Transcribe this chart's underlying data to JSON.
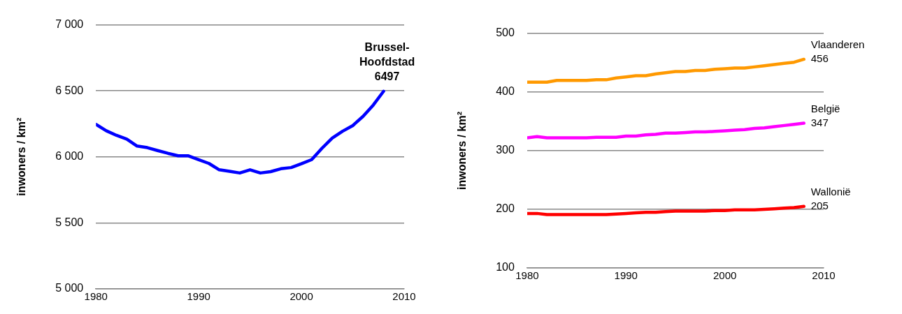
{
  "chart_data": [
    {
      "type": "line",
      "ylabel": "inwoners / km²",
      "x": [
        1980,
        1981,
        1982,
        1983,
        1984,
        1985,
        1986,
        1987,
        1988,
        1989,
        1990,
        1991,
        1992,
        1993,
        1994,
        1995,
        1996,
        1997,
        1998,
        1999,
        2000,
        2001,
        2002,
        2003,
        2004,
        2005,
        2006,
        2007,
        2008
      ],
      "series": [
        {
          "name": "Brussel-Hoofdstad",
          "color": "#0000ff",
          "values": [
            6246,
            6198,
            6163,
            6134,
            6082,
            6070,
            6048,
            6027,
            6008,
            6008,
            5979,
            5950,
            5902,
            5891,
            5878,
            5902,
            5878,
            5888,
            5910,
            5919,
            5948,
            5979,
            6065,
            6142,
            6194,
            6237,
            6307,
            6393,
            6497
          ],
          "value_labels": [
            null,
            null,
            null,
            null,
            null,
            null,
            null,
            null,
            null,
            null,
            null,
            null,
            null,
            null,
            null,
            null,
            null,
            null,
            null,
            null,
            null,
            null,
            null,
            null,
            null,
            null,
            null,
            null,
            "6497"
          ]
        }
      ],
      "xlim": [
        1980,
        2010
      ],
      "xticks": [
        1980,
        1990,
        2000,
        2010
      ],
      "ylim": [
        5000,
        7000
      ],
      "yticks": [
        {
          "value": 5000,
          "label": "5 000"
        },
        {
          "value": 5500,
          "label": "5 500"
        },
        {
          "value": 6000,
          "label": "6 000"
        },
        {
          "value": 6500,
          "label": "6 500"
        },
        {
          "value": 7000,
          "label": "7 000"
        }
      ],
      "grid": "y",
      "legend": false,
      "marker": "none",
      "line_style": "solid"
    },
    {
      "type": "line",
      "ylabel": "inwoners / km²",
      "x": [
        1980,
        1981,
        1982,
        1983,
        1984,
        1985,
        1986,
        1987,
        1988,
        1989,
        1990,
        1991,
        1992,
        1993,
        1994,
        1995,
        1996,
        1997,
        1998,
        1999,
        2000,
        2001,
        2002,
        2003,
        2004,
        2005,
        2006,
        2007,
        2008
      ],
      "series": [
        {
          "name": "Vlaanderen",
          "color": "#ff9900",
          "values": [
            417,
            417,
            417,
            420,
            420,
            420,
            420,
            421,
            421,
            424,
            426,
            428,
            428,
            431,
            433,
            435,
            435,
            437,
            437,
            439,
            440,
            441,
            441,
            443,
            445,
            447,
            449,
            451,
            456
          ],
          "value_labels": [
            null,
            null,
            null,
            null,
            null,
            null,
            null,
            null,
            null,
            null,
            null,
            null,
            null,
            null,
            null,
            null,
            null,
            null,
            null,
            null,
            null,
            null,
            null,
            null,
            null,
            null,
            null,
            null,
            "456"
          ]
        },
        {
          "name": "België",
          "color": "#ff00ff",
          "values": [
            322,
            324,
            322,
            322,
            322,
            322,
            322,
            323,
            323,
            323,
            325,
            325,
            327,
            328,
            330,
            330,
            331,
            332,
            332,
            333,
            334,
            335,
            336,
            338,
            339,
            341,
            343,
            345,
            347
          ],
          "value_labels": [
            null,
            null,
            null,
            null,
            null,
            null,
            null,
            null,
            null,
            null,
            null,
            null,
            null,
            null,
            null,
            null,
            null,
            null,
            null,
            null,
            null,
            null,
            null,
            null,
            null,
            null,
            null,
            null,
            "347"
          ]
        },
        {
          "name": "Wallonië",
          "color": "#ff0000",
          "values": [
            193,
            193,
            191,
            191,
            191,
            191,
            191,
            191,
            191,
            192,
            193,
            194,
            195,
            195,
            196,
            197,
            197,
            197,
            197,
            198,
            198,
            199,
            199,
            199,
            200,
            201,
            202,
            203,
            205
          ],
          "value_labels": [
            null,
            null,
            null,
            null,
            null,
            null,
            null,
            null,
            null,
            null,
            null,
            null,
            null,
            null,
            null,
            null,
            null,
            null,
            null,
            null,
            null,
            null,
            null,
            null,
            null,
            null,
            null,
            null,
            "205"
          ]
        }
      ],
      "xlim": [
        1980,
        2010
      ],
      "xticks": [
        1980,
        1990,
        2000,
        2010
      ],
      "ylim": [
        100,
        500
      ],
      "yticks": [
        100,
        200,
        300,
        400,
        500
      ],
      "grid": "y",
      "legend": false,
      "marker": "none",
      "line_style": "solid"
    }
  ]
}
